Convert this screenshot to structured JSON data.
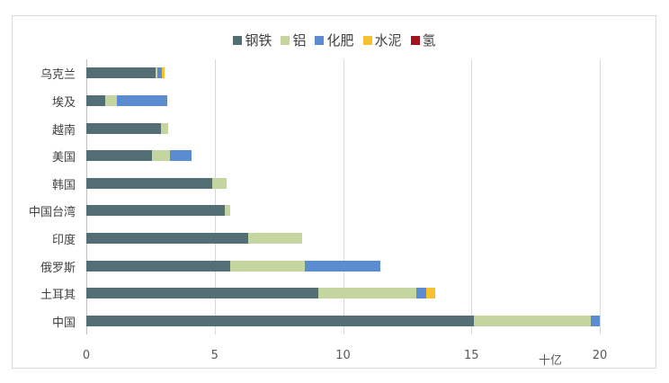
{
  "chart_data": {
    "type": "bar",
    "orientation": "horizontal",
    "stacked": true,
    "title": "",
    "xlabel": "十亿",
    "ylabel": "",
    "xlim": [
      0,
      20
    ],
    "xticks": [
      0,
      5,
      10,
      15,
      20
    ],
    "grid": true,
    "legend_position": "top",
    "categories": [
      "乌克兰",
      "埃及",
      "越南",
      "美国",
      "韩国",
      "中国台湾",
      "印度",
      "俄罗斯",
      "土耳其",
      "中国"
    ],
    "series": [
      {
        "name": "钢铁",
        "color": "#546e76",
        "values": [
          2.7,
          0.75,
          2.9,
          2.55,
          4.9,
          5.4,
          6.3,
          5.6,
          9.05,
          15.1
        ]
      },
      {
        "name": "铝",
        "color": "#c5d5a0",
        "values": [
          0.05,
          0.45,
          0.3,
          0.7,
          0.55,
          0.2,
          2.1,
          2.9,
          3.8,
          4.55
        ]
      },
      {
        "name": "化肥",
        "color": "#5b8bd0",
        "values": [
          0.2,
          1.95,
          0,
          0.85,
          0,
          0,
          0,
          2.95,
          0.4,
          0.35
        ]
      },
      {
        "name": "水泥",
        "color": "#f5c12e",
        "values": [
          0.1,
          0,
          0,
          0,
          0,
          0,
          0,
          0,
          0.35,
          0
        ]
      },
      {
        "name": "氢",
        "color": "#a3131c",
        "values": [
          0,
          0,
          0,
          0,
          0,
          0,
          0,
          0,
          0,
          0
        ]
      }
    ]
  },
  "legend": [
    "钢铁",
    "铝",
    "化肥",
    "水泥",
    "氢"
  ],
  "axis": {
    "ticks": [
      "0",
      "5",
      "10",
      "15",
      "20"
    ],
    "unit": "十亿"
  }
}
